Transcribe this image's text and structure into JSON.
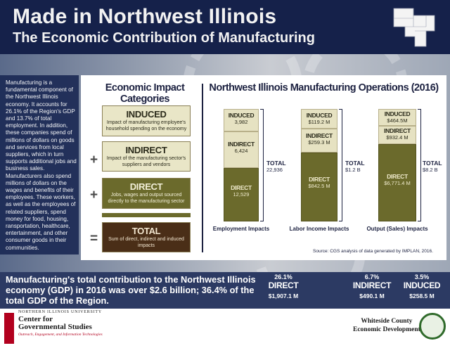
{
  "header": {
    "title": "Made in Northwest Illinois",
    "subtitle": "The Economic Contribution of Manufacturing"
  },
  "intro_text": "Manufacturing is a fundamental component of the Northwest Illinois economy. It accounts for 26.1% of the Region's GDP and 13.7% of total employment. In addition, these companies spend of millions of dollars on goods and services from local suppliers, which in turn supports additional jobs and business sales. Manufacturers also spend millions of dollars on the wages and benefits of their employees. These workers, as well as the employees of related suppliers, spend money for food, housing, ransportation, healthcare, entertainment, and other consumer goods in their communities.",
  "categories": {
    "title": "Economic Impact Categories",
    "items": [
      {
        "name": "INDUCED",
        "desc": "Impact of manufacturing employee's household spending on the economy"
      },
      {
        "name": "INDIRECT",
        "desc": "Impact of the manufacturing sector's suppliers and vendors"
      },
      {
        "name": "DIRECT",
        "desc": "Jobs, wages and output sourced directly to the manufacturing sector"
      },
      {
        "name": "TOTAL",
        "desc": "Sum of direct, indirect and induced impacts"
      }
    ],
    "plus": "+",
    "equals": "="
  },
  "operations": {
    "title": "Northwest Illinois Manufacturing Operations (2016)",
    "total_label": "TOTAL",
    "groups": [
      {
        "label": "Employment Impacts",
        "induced": {
          "name": "INDUCED",
          "value": "3,982"
        },
        "indirect": {
          "name": "INDIRECT",
          "value": "6,424"
        },
        "direct": {
          "name": "DIRECT",
          "value": "12,529"
        },
        "total": "22,936"
      },
      {
        "label": "Labor Income Impacts",
        "induced": {
          "name": "INDUCED",
          "value": "$119.2 M"
        },
        "indirect": {
          "name": "INDIRECT",
          "value": "$259.3 M"
        },
        "direct": {
          "name": "DIRECT",
          "value": "$842.5 M"
        },
        "total": "$1.2 B"
      },
      {
        "label": "Output (Sales) Impacts",
        "induced": {
          "name": "INDUCED",
          "value": "$464.5M"
        },
        "indirect": {
          "name": "INDIRECT",
          "value": "$932.4 M"
        },
        "direct": {
          "name": "DIRECT",
          "value": "$6,771.4 M"
        },
        "total": "$8.2 B"
      }
    ],
    "source": "Source: CGS analysis of data generated by IMPLAN, 2016."
  },
  "summary": {
    "text": "Manufacturing's total contribution to the Northwest Illinois economy (GDP) in 2016 was over $2.6 billion; 36.4% of the total GDP of the Region.",
    "kpis": [
      {
        "pct": "26.1%",
        "name": "DIRECT",
        "value": "$1,907.1 M"
      },
      {
        "pct": "6.7%",
        "name": "INDIRECT",
        "value": "$490.1 M"
      },
      {
        "pct": "3.5%",
        "name": "INDUCED",
        "value": "$258.5 M"
      }
    ]
  },
  "footer": {
    "university": "NORTHERN ILLINOIS UNIVERSITY",
    "center_line1": "Center for",
    "center_line2": "Governmental Studies",
    "tagline": "Outreach, Engagement, and Information Technologies",
    "partner_line1": "Whiteside County",
    "partner_line2": "Economic Development"
  },
  "colors": {
    "navy": "#15214a",
    "olive": "#6b6a2c",
    "cream": "#e9e6c7",
    "brown": "#4a2e17",
    "niu_red": "#b2001e"
  }
}
